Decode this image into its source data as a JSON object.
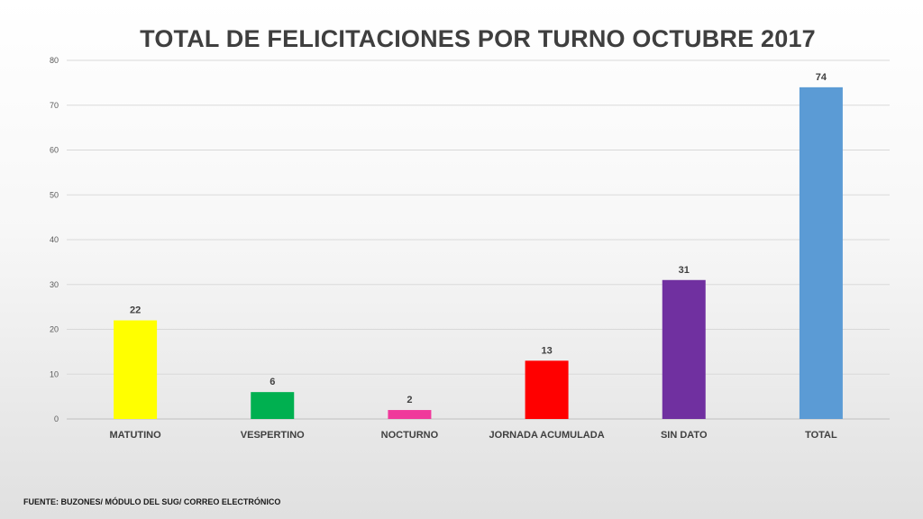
{
  "chart_data": {
    "type": "bar",
    "title": "TOTAL DE FELICITACIONES POR TURNO OCTUBRE 2017",
    "categories": [
      "MATUTINO",
      "VESPERTINO",
      "NOCTURNO",
      "JORNADA ACUMULADA",
      "SIN DATO",
      "TOTAL"
    ],
    "values": [
      22,
      6,
      2,
      13,
      31,
      74
    ],
    "colors": [
      "#ffff00",
      "#00b050",
      "#f0399b",
      "#ff0000",
      "#7030a0",
      "#5b9bd5"
    ],
    "ylim": [
      0,
      80
    ],
    "yticks": [
      0,
      10,
      20,
      30,
      40,
      50,
      60,
      70,
      80
    ],
    "grid": true,
    "data_labels": true,
    "xlabel": "",
    "ylabel": ""
  },
  "footer": {
    "source": "FUENTE: BUZONES/ MÓDULO DEL SUG/ CORREO ELECTRÓNICO"
  }
}
